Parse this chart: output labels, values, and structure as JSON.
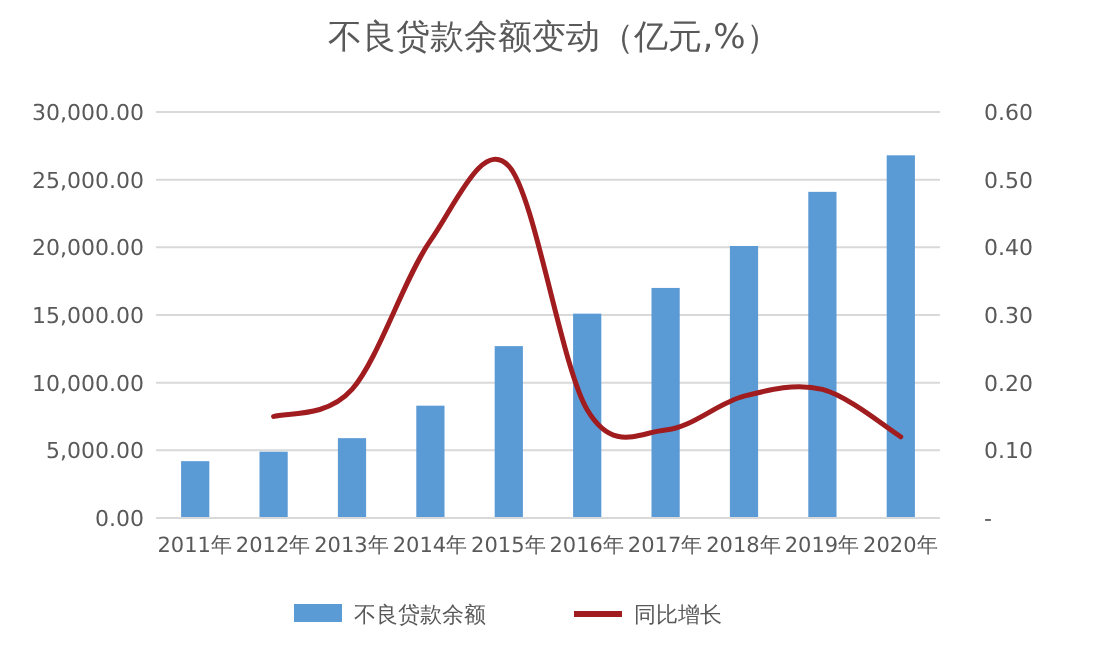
{
  "chart_data": {
    "type": "bar",
    "title": "不良贷款余额变动（亿元,%）",
    "categories": [
      "2011年",
      "2012年",
      "2013年",
      "2014年",
      "2015年",
      "2016年",
      "2017年",
      "2018年",
      "2019年",
      "2020年"
    ],
    "series": [
      {
        "name": "不良贷款余额",
        "color": "#5b9bd5",
        "values": [
          4200,
          4900,
          5900,
          8300,
          12700,
          15100,
          17000,
          20100,
          24100,
          26800
        ]
      },
      {
        "name": "同比增长",
        "type": "line",
        "axis": "y2",
        "color": "#a01c1f",
        "values": [
          null,
          0.15,
          0.19,
          0.41,
          0.52,
          0.16,
          0.13,
          0.18,
          0.19,
          0.12
        ]
      }
    ],
    "ylim": [
      0,
      30000
    ],
    "yticks": [
      {
        "value": 0,
        "label": "0.00"
      },
      {
        "value": 5000,
        "label": "5,000.00"
      },
      {
        "value": 10000,
        "label": "10,000.00"
      },
      {
        "value": 15000,
        "label": "15,000.00"
      },
      {
        "value": 20000,
        "label": "20,000.00"
      },
      {
        "value": 25000,
        "label": "25,000.00"
      },
      {
        "value": 30000,
        "label": "30,000.00"
      }
    ],
    "y2lim": [
      0,
      0.6
    ],
    "y2ticks": [
      {
        "value": 0,
        "label": "-"
      },
      {
        "value": 0.1,
        "label": "0.10"
      },
      {
        "value": 0.2,
        "label": "0.20"
      },
      {
        "value": 0.3,
        "label": "0.30"
      },
      {
        "value": 0.4,
        "label": "0.40"
      },
      {
        "value": 0.5,
        "label": "0.50"
      },
      {
        "value": 0.6,
        "label": "0.60"
      }
    ],
    "grid": "y",
    "legend": "bottom"
  }
}
